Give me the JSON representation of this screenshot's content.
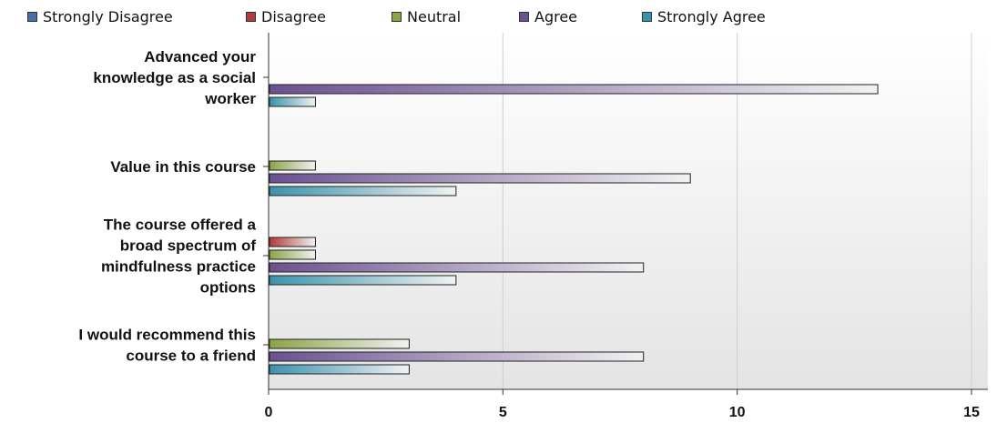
{
  "chart_data": {
    "type": "bar",
    "orientation": "horizontal",
    "categories": [
      "Advanced your knowledge as a social worker",
      "Value in this course",
      "The course offered a broad spectrum of mindfulness practice options",
      "I would recommend this course to a friend"
    ],
    "category_lines": [
      [
        "Advanced your",
        "knowledge as a social",
        "worker"
      ],
      [
        "Value in this course"
      ],
      [
        "The course offered a",
        "broad spectrum of",
        "mindfulness practice",
        "options"
      ],
      [
        "I would recommend this",
        "course to a friend"
      ]
    ],
    "series": [
      {
        "name": "Strongly Disagree",
        "color": "#4472a8",
        "values": [
          0,
          0,
          0,
          0
        ]
      },
      {
        "name": "Disagree",
        "color": "#b23a3a",
        "values": [
          0,
          0,
          1,
          0
        ]
      },
      {
        "name": "Neutral",
        "color": "#8ba445",
        "values": [
          0,
          1,
          1,
          3
        ]
      },
      {
        "name": "Agree",
        "color": "#6a5190",
        "values": [
          13,
          9,
          8,
          8
        ]
      },
      {
        "name": "Strongly Agree",
        "color": "#3a93ac",
        "values": [
          1,
          4,
          4,
          3
        ]
      }
    ],
    "xlim": [
      0,
      15
    ],
    "xticks": [
      0,
      5,
      10,
      15
    ],
    "grid": true,
    "legend_position": "top"
  }
}
